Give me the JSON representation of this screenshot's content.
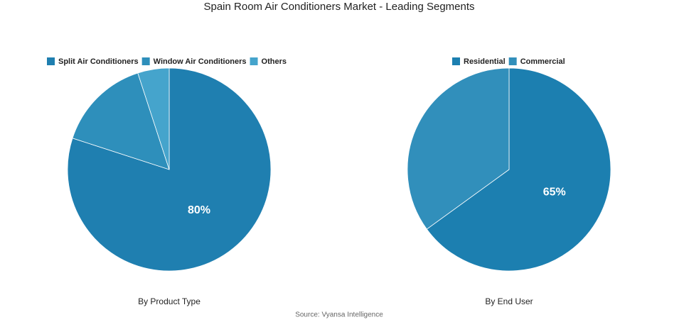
{
  "title": "Spain Room Air Conditioners Market - Leading Segments",
  "source": "Source: Vyansa Intelligence",
  "chart_data": [
    {
      "type": "pie",
      "title": "By Product Type",
      "categories": [
        "Split Air Conditioners",
        "Window Air Conditioners",
        "Others"
      ],
      "values": [
        80,
        15,
        5
      ],
      "value_labels": [
        "80%",
        null,
        null
      ],
      "colors": [
        "#1f7fb0",
        "#2e8fbb",
        "#45a4cc"
      ]
    },
    {
      "type": "pie",
      "title": "By End User",
      "categories": [
        "Residential",
        "Commercial"
      ],
      "values": [
        65,
        35
      ],
      "value_labels": [
        "65%",
        null
      ],
      "colors": [
        "#1c7fb0",
        "#318fbb"
      ]
    }
  ]
}
